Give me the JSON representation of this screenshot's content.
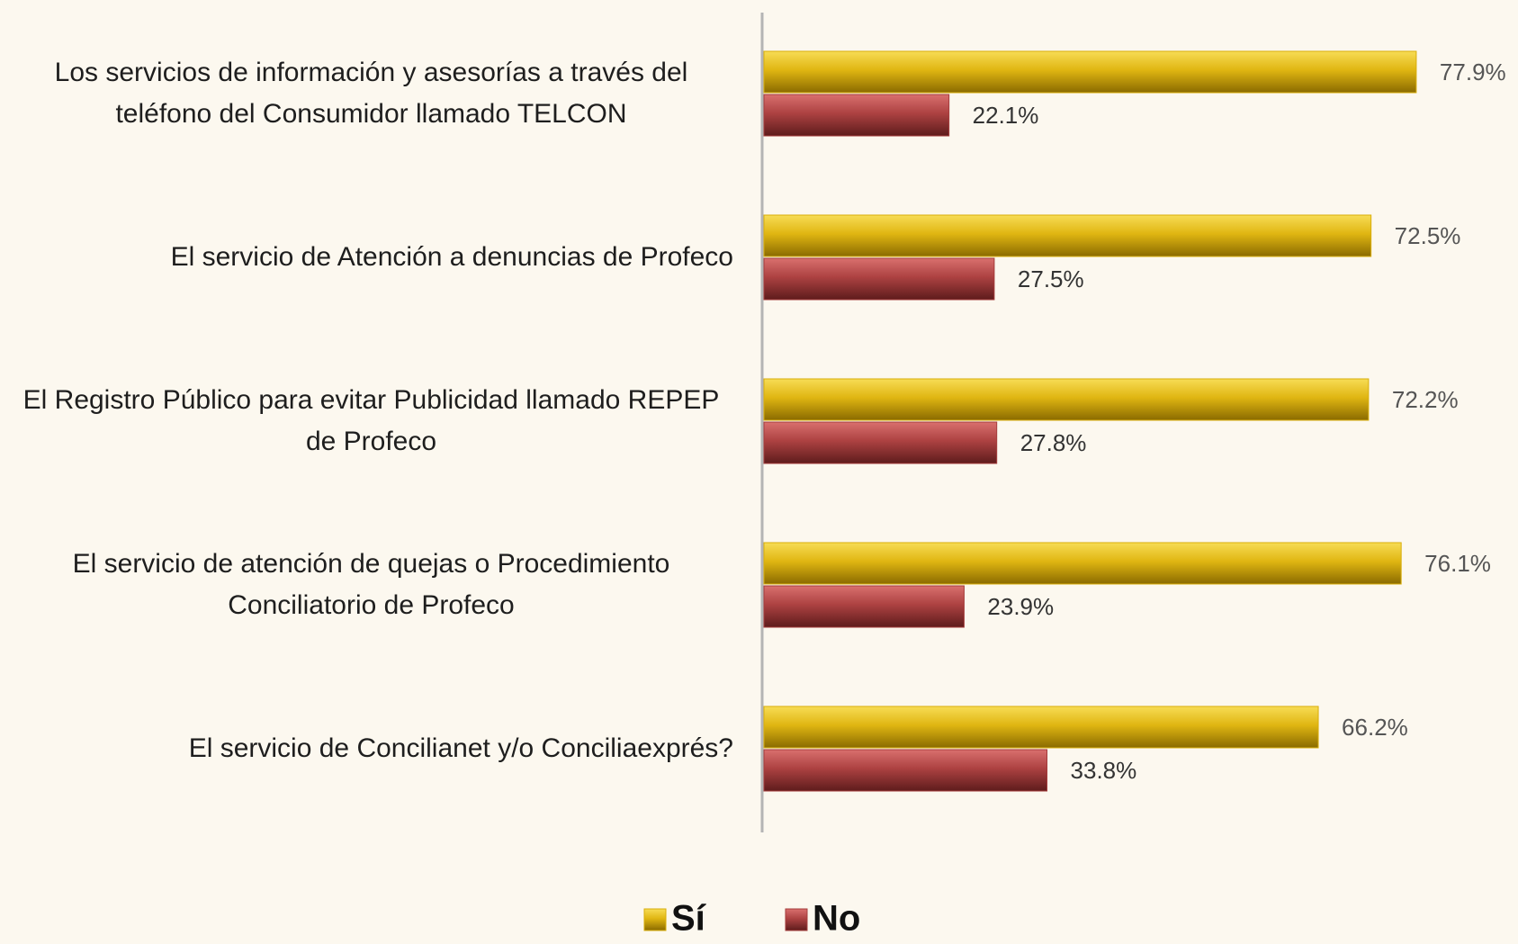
{
  "chart_data": {
    "type": "hbar",
    "categories": [
      "Los servicios de información y asesorías a través del teléfono del Consumidor llamado TELCON",
      "El servicio de Atención a denuncias de Profeco",
      "El Registro Público para evitar Publicidad llamado REPEP de Profeco",
      "El servicio de atención de quejas o Procedimiento Conciliatorio de Profeco",
      "El servicio de Concilianet y/o Conciliaexprés?"
    ],
    "series": [
      {
        "name": "Sí",
        "color": "#d9ae0a",
        "values": [
          77.9,
          72.5,
          72.2,
          76.1,
          66.2
        ],
        "value_labels": [
          "77.9%",
          "72.5%",
          "72.2%",
          "76.1%",
          "66.2%"
        ]
      },
      {
        "name": "No",
        "color": "#a53b3b",
        "values": [
          22.1,
          27.5,
          27.8,
          23.9,
          33.8
        ],
        "value_labels": [
          "22.1%",
          "27.5%",
          "27.8%",
          "23.9%",
          "33.8%"
        ]
      }
    ],
    "xlim": [
      0,
      85
    ],
    "legend": "bottom"
  }
}
